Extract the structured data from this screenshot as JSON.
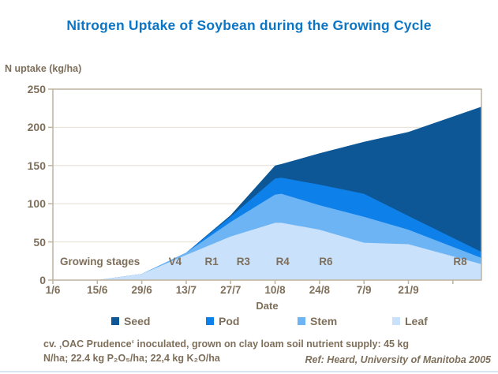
{
  "colors": {
    "title_blue": "#0d76c4",
    "text_brown": "#7e6f5b",
    "axis": "#bfb29d",
    "grid": "#e5ded2"
  },
  "chart_data": {
    "type": "area",
    "stacked": true,
    "title": "Nitrogen Uptake of Soybean during the Growing Cycle",
    "ylabel": "N uptake (kg/ha)",
    "xlabel": "Date",
    "ylim": [
      0,
      250
    ],
    "y_ticks": [
      0,
      50,
      100,
      150,
      200,
      250
    ],
    "grid": "horizontal",
    "legend_position": "bottom",
    "xlim_days": [
      0,
      135
    ],
    "x_tick_days": [
      0,
      14,
      28,
      42,
      56,
      70,
      84,
      98,
      112
    ],
    "x_tick_labels": [
      "1/6",
      "15/6",
      "29/6",
      "13/7",
      "27/7",
      "10/8",
      "24/8",
      "7/9",
      "21/9"
    ],
    "x_days": [
      0,
      14,
      28,
      42,
      56,
      70,
      72,
      84,
      98,
      112,
      135
    ],
    "series": [
      {
        "name": "Seed",
        "color": "#0e5796",
        "values": [
          0,
          0,
          0,
          0,
          2,
          17,
          18,
          41,
          68,
          110,
          190
        ]
      },
      {
        "name": "Pod",
        "color": "#0e80e9",
        "values": [
          0,
          0,
          0,
          0,
          7,
          21,
          21,
          27,
          30,
          18,
          8
        ]
      },
      {
        "name": "Stem",
        "color": "#6db4f5",
        "values": [
          0,
          0,
          0,
          3,
          19,
          37,
          38,
          32,
          34,
          19,
          8
        ]
      },
      {
        "name": "Leaf",
        "color": "#c9e1fa",
        "values": [
          0,
          0,
          8,
          33,
          57,
          75,
          75,
          66,
          49,
          47,
          21
        ]
      }
    ],
    "stages_title": "Growing stages",
    "stages": [
      {
        "label": "V4",
        "day": 38.5
      },
      {
        "label": "R1",
        "day": 50
      },
      {
        "label": "R3",
        "day": 60
      },
      {
        "label": "R4",
        "day": 72.4
      },
      {
        "label": "R6",
        "day": 86
      },
      {
        "label": "R8",
        "day": 128.3
      }
    ]
  },
  "caption": {
    "line1": "cv. ‚OAC Prudence‘ inoculated, grown on clay loam soil nutrient supply: 45 kg",
    "line2": "N/ha; 22.4 kg P₂O₅/ha; 22,4 kg K₂O/ha",
    "ref": "Ref: Heard, University of Manitoba 2005"
  }
}
